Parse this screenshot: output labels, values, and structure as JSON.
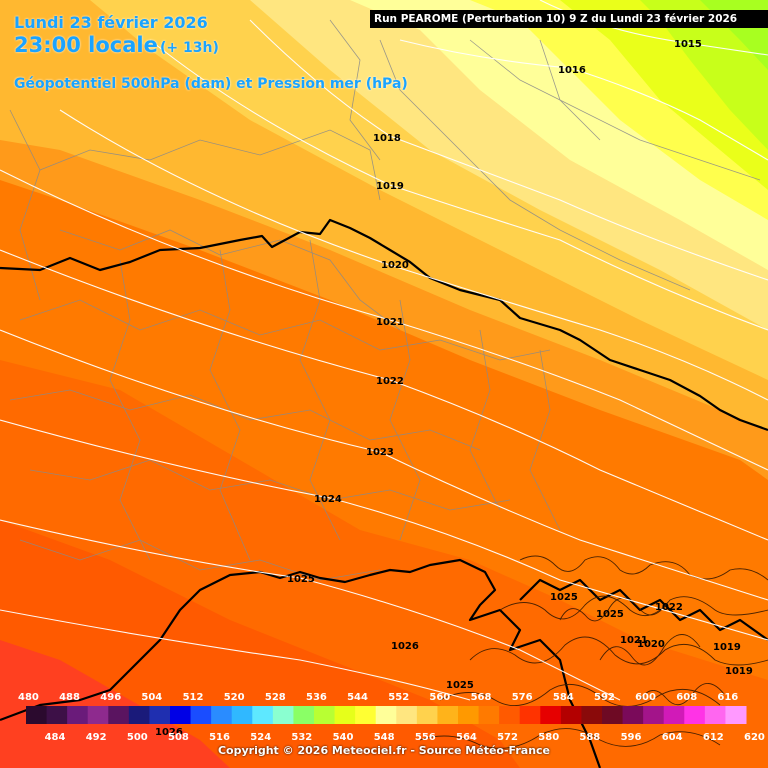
{
  "header": {
    "date": "Lundi 23 février 2026",
    "local_time": "23:00 locale",
    "lead": "(+ 13h)",
    "parameter": "Géopotentiel 500hPa (dam) et Pression mer (hPa)"
  },
  "run_banner": "Run PEAROME (Perturbation 10) 9 Z du Lundi 23 février 2026",
  "isobar_labels": [
    "1015",
    "1016",
    "1018",
    "1019",
    "1020",
    "1021",
    "1022",
    "1023",
    "1024",
    "1025",
    "1026",
    "1025",
    "1025",
    "1022",
    "1021",
    "1020",
    "1019",
    "1019",
    "1025",
    "1026"
  ],
  "legend": {
    "upper_values": [
      "480",
      "488",
      "496",
      "504",
      "512",
      "520",
      "528",
      "536",
      "544",
      "552",
      "560",
      "568",
      "576",
      "584",
      "592",
      "600",
      "608",
      "616"
    ],
    "lower_values": [
      "484",
      "492",
      "500",
      "508",
      "516",
      "524",
      "532",
      "540",
      "548",
      "556",
      "564",
      "572",
      "580",
      "588",
      "596",
      "604",
      "612",
      "620"
    ],
    "colors": [
      "#2b0a2e",
      "#3d1047",
      "#6a1b7a",
      "#8e2a8e",
      "#5a1460",
      "#1a1a7a",
      "#1f2fb0",
      "#0000e6",
      "#1a4dff",
      "#2a8cff",
      "#30b8ff",
      "#5ee8ff",
      "#8affd0",
      "#8aff66",
      "#b8ff33",
      "#e6ff1a",
      "#ffff33",
      "#ffff99",
      "#ffe680",
      "#ffd24d",
      "#ffb31a",
      "#ff9900",
      "#ff7a00",
      "#ff5a00",
      "#ff3300",
      "#e60000",
      "#b30000",
      "#8a0a0a",
      "#6e0a24",
      "#7a0a5a",
      "#a3148a",
      "#d11ab8",
      "#ff33e6",
      "#ff66f0",
      "#ff99ff"
    ]
  },
  "copyright": "Copyright © 2026 Meteociel.fr - Source Météo-France"
}
